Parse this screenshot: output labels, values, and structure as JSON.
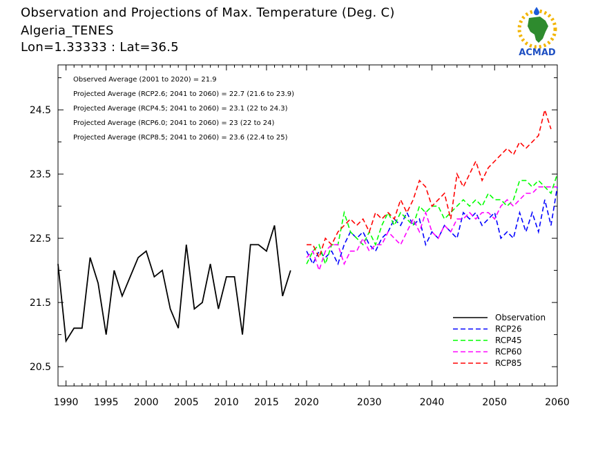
{
  "header": {
    "title": "Observation and Projections of Max. Temperature (Deg. C)",
    "station": "Algeria_TENES",
    "coords": "Lon=1.33333 : Lat=36.5"
  },
  "logo": {
    "text": "ACMAD"
  },
  "chart_data": {
    "type": "line",
    "title": "Observation and Projections of Max. Temperature (Deg. C)",
    "xlabel": "",
    "ylabel": "",
    "xlim": [
      1989,
      2060
    ],
    "ylim": [
      20.2,
      25.2
    ],
    "xticks_early": [
      1990,
      1995,
      2000,
      2005,
      2010,
      2015,
      2020
    ],
    "xticks_late": [
      2030,
      2040,
      2050,
      2060
    ],
    "yticks": [
      20.5,
      21.5,
      22.5,
      23.5,
      24.5
    ],
    "ytick_labels": [
      "20.5",
      "21.5",
      "22.5",
      "23.5",
      "24.5"
    ],
    "annotations": [
      "Observed Average (2001 to 2020) = 21.9",
      "Projected Average (RCP2.6; 2041 to 2060) = 22.7 (21.6 to 23.9)",
      "Projected Average (RCP4.5; 2041 to 2060) = 23.1 (22 to 24.3)",
      "Projected Average (RCP6.0; 2041 to 2060) = 23 (22 to 24)",
      "Projected Average (RCP8.5; 2041 to 2060) = 23.6 (22.4 to 25)"
    ],
    "legend_position": "bottom-right",
    "series": [
      {
        "name": "Observation",
        "color": "#000000",
        "dash": "solid",
        "x": [
          1989,
          1990,
          1991,
          1992,
          1993,
          1994,
          1995,
          1996,
          1997,
          1998,
          1999,
          2000,
          2001,
          2002,
          2003,
          2004,
          2005,
          2006,
          2007,
          2008,
          2009,
          2010,
          2011,
          2012,
          2013,
          2014,
          2015,
          2016,
          2017,
          2018,
          2019
        ],
        "y": [
          22.1,
          20.9,
          21.1,
          21.1,
          22.2,
          21.8,
          21.0,
          22.0,
          21.6,
          21.9,
          22.2,
          22.3,
          21.9,
          22.0,
          21.4,
          21.1,
          22.4,
          21.4,
          21.5,
          22.1,
          21.4,
          21.9,
          21.9,
          21.0,
          22.4,
          22.4,
          22.3,
          22.7,
          21.6,
          22.0,
          null
        ]
      },
      {
        "name": "RCP26",
        "color": "#0000ff",
        "dash": "dashed",
        "x": [
          2020,
          2021,
          2022,
          2023,
          2024,
          2025,
          2026,
          2027,
          2028,
          2029,
          2030,
          2031,
          2032,
          2033,
          2034,
          2035,
          2036,
          2037,
          2038,
          2039,
          2040,
          2041,
          2042,
          2043,
          2044,
          2045,
          2046,
          2047,
          2048,
          2049,
          2050,
          2051,
          2052,
          2053,
          2054,
          2055,
          2056,
          2057,
          2058,
          2059,
          2060
        ],
        "y": [
          22.3,
          22.1,
          22.3,
          22.2,
          22.3,
          22.1,
          22.4,
          22.6,
          22.5,
          22.6,
          22.4,
          22.3,
          22.5,
          22.6,
          22.8,
          22.7,
          22.9,
          22.7,
          22.8,
          22.4,
          22.6,
          22.5,
          22.7,
          22.6,
          22.5,
          22.9,
          22.8,
          22.9,
          22.7,
          22.8,
          22.9,
          22.5,
          22.6,
          22.5,
          22.9,
          22.6,
          22.9,
          22.6,
          23.1,
          22.7,
          23.3
        ]
      },
      {
        "name": "RCP45",
        "color": "#00ff00",
        "dash": "dashed",
        "x": [
          2020,
          2021,
          2022,
          2023,
          2024,
          2025,
          2026,
          2027,
          2028,
          2029,
          2030,
          2031,
          2032,
          2033,
          2034,
          2035,
          2036,
          2037,
          2038,
          2039,
          2040,
          2041,
          2042,
          2043,
          2044,
          2045,
          2046,
          2047,
          2048,
          2049,
          2050,
          2051,
          2052,
          2053,
          2054,
          2055,
          2056,
          2057,
          2058,
          2059,
          2060
        ],
        "y": [
          22.1,
          22.3,
          22.4,
          22.1,
          22.4,
          22.4,
          22.9,
          22.6,
          22.5,
          22.4,
          22.6,
          22.4,
          22.7,
          22.9,
          22.7,
          22.9,
          22.8,
          22.7,
          23.0,
          22.9,
          23.0,
          23.0,
          22.8,
          22.9,
          23.0,
          23.1,
          23.0,
          23.1,
          23.0,
          23.2,
          23.1,
          23.1,
          23.0,
          23.1,
          23.4,
          23.4,
          23.3,
          23.4,
          23.3,
          23.2,
          23.5
        ]
      },
      {
        "name": "RCP60",
        "color": "#ff00ff",
        "dash": "dashed",
        "x": [
          2020,
          2021,
          2022,
          2023,
          2024,
          2025,
          2026,
          2027,
          2028,
          2029,
          2030,
          2031,
          2032,
          2033,
          2034,
          2035,
          2036,
          2037,
          2038,
          2039,
          2040,
          2041,
          2042,
          2043,
          2044,
          2045,
          2046,
          2047,
          2048,
          2049,
          2050,
          2051,
          2052,
          2053,
          2054,
          2055,
          2056,
          2057,
          2058,
          2059,
          2060
        ],
        "y": [
          22.2,
          22.3,
          22.0,
          22.3,
          22.4,
          22.4,
          22.1,
          22.3,
          22.3,
          22.5,
          22.3,
          22.4,
          22.4,
          22.6,
          22.5,
          22.4,
          22.6,
          22.8,
          22.6,
          22.9,
          22.6,
          22.5,
          22.7,
          22.6,
          22.8,
          22.8,
          22.9,
          22.8,
          22.9,
          22.9,
          22.8,
          23.0,
          23.1,
          23.0,
          23.1,
          23.2,
          23.2,
          23.3,
          23.3,
          23.3,
          23.3
        ]
      },
      {
        "name": "RCP85",
        "color": "#ff0000",
        "dash": "dashed",
        "x": [
          2020,
          2021,
          2022,
          2023,
          2024,
          2025,
          2026,
          2027,
          2028,
          2029,
          2030,
          2031,
          2032,
          2033,
          2034,
          2035,
          2036,
          2037,
          2038,
          2039,
          2040,
          2041,
          2042,
          2043,
          2044,
          2045,
          2046,
          2047,
          2048,
          2049,
          2050,
          2051,
          2052,
          2053,
          2054,
          2055,
          2056,
          2057,
          2058,
          2059,
          2060
        ],
        "y": [
          22.4,
          22.4,
          22.2,
          22.5,
          22.4,
          22.6,
          22.7,
          22.8,
          22.7,
          22.8,
          22.6,
          22.9,
          22.8,
          22.9,
          22.8,
          23.1,
          22.9,
          23.1,
          23.4,
          23.3,
          23.0,
          23.1,
          23.2,
          22.8,
          23.5,
          23.3,
          23.5,
          23.7,
          23.4,
          23.6,
          23.7,
          23.8,
          23.9,
          23.8,
          24.0,
          23.9,
          24.0,
          24.1,
          24.5,
          24.2,
          null
        ]
      }
    ]
  }
}
